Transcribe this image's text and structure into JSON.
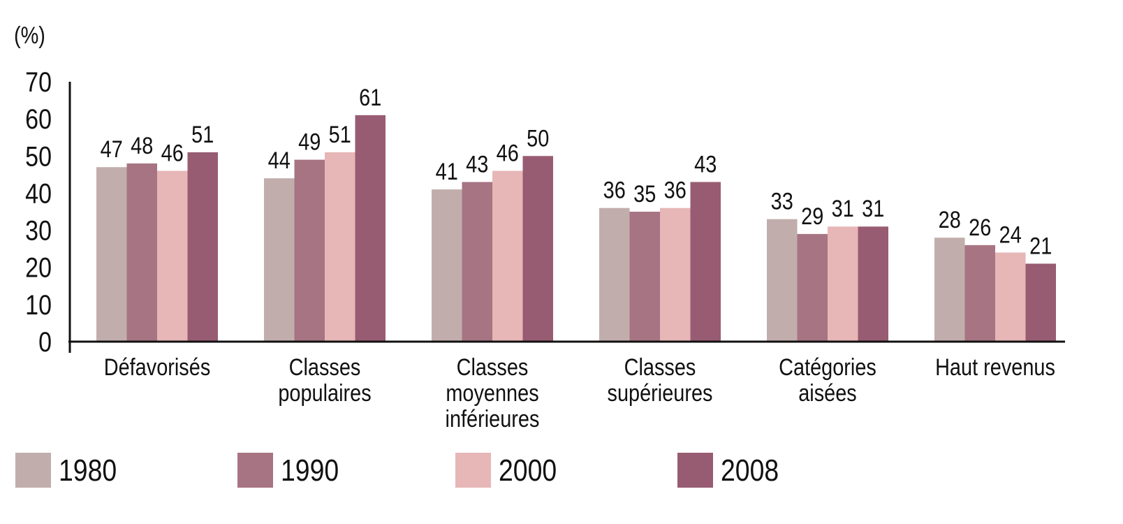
{
  "chart_data": {
    "type": "bar",
    "title": "",
    "ylabel": "(%)",
    "xlabel": "",
    "ylim": [
      0,
      70
    ],
    "yticks": [
      0,
      10,
      20,
      30,
      40,
      50,
      60,
      70
    ],
    "grid": false,
    "legend_placement": "bottom",
    "categories": [
      [
        "Défavorisés"
      ],
      [
        "Classes",
        "populaires"
      ],
      [
        "Classes",
        "moyennes",
        "inférieures"
      ],
      [
        "Classes",
        "supérieures"
      ],
      [
        "Catégories",
        "aisées"
      ],
      [
        "Haut revenus"
      ]
    ],
    "series": [
      {
        "name": "1980",
        "color": "#c1aeac",
        "values": [
          47,
          44,
          41,
          36,
          33,
          28
        ]
      },
      {
        "name": "1990",
        "color": "#a77483",
        "values": [
          48,
          49,
          43,
          35,
          29,
          26
        ]
      },
      {
        "name": "2000",
        "color": "#e7b6b7",
        "values": [
          46,
          51,
          46,
          36,
          31,
          24
        ]
      },
      {
        "name": "2008",
        "color": "#985c72",
        "values": [
          51,
          61,
          50,
          43,
          31,
          21
        ]
      }
    ]
  }
}
